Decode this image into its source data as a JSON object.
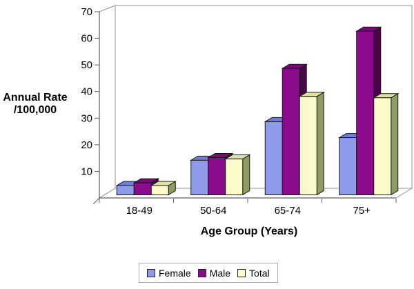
{
  "chart_data": {
    "type": "bar",
    "style": "3d-clustered",
    "title": "",
    "ylabel_lines": [
      "Annual Rate",
      "/100,000"
    ],
    "xlabel": "Age Group (Years)",
    "categories": [
      "18-49",
      "50-64",
      "65-74",
      "75+"
    ],
    "series": [
      {
        "name": "Female",
        "values": [
          3.5,
          13,
          27.5,
          21.5
        ],
        "colors": {
          "front": "#8F9BEA",
          "top": "#6F7EDC",
          "side": "#5560B4"
        }
      },
      {
        "name": "Male",
        "values": [
          4.5,
          14,
          47.5,
          61.5
        ],
        "colors": {
          "front": "#8C0A8C",
          "top": "#760B76",
          "side": "#4B064B"
        }
      },
      {
        "name": "Total",
        "values": [
          3.5,
          13.5,
          37,
          36.5
        ],
        "colors": {
          "front": "#FBFBC9",
          "top": "#DFE0A6",
          "side": "#8C9C63"
        }
      }
    ],
    "ylim": [
      0,
      70
    ],
    "yticks": [
      10,
      20,
      30,
      40,
      50,
      60,
      70
    ],
    "grid": false,
    "legend_position": "bottom",
    "frame_color": "#909090",
    "axis_color": "#5f5f5f",
    "bar_outline_color": "#161616"
  }
}
